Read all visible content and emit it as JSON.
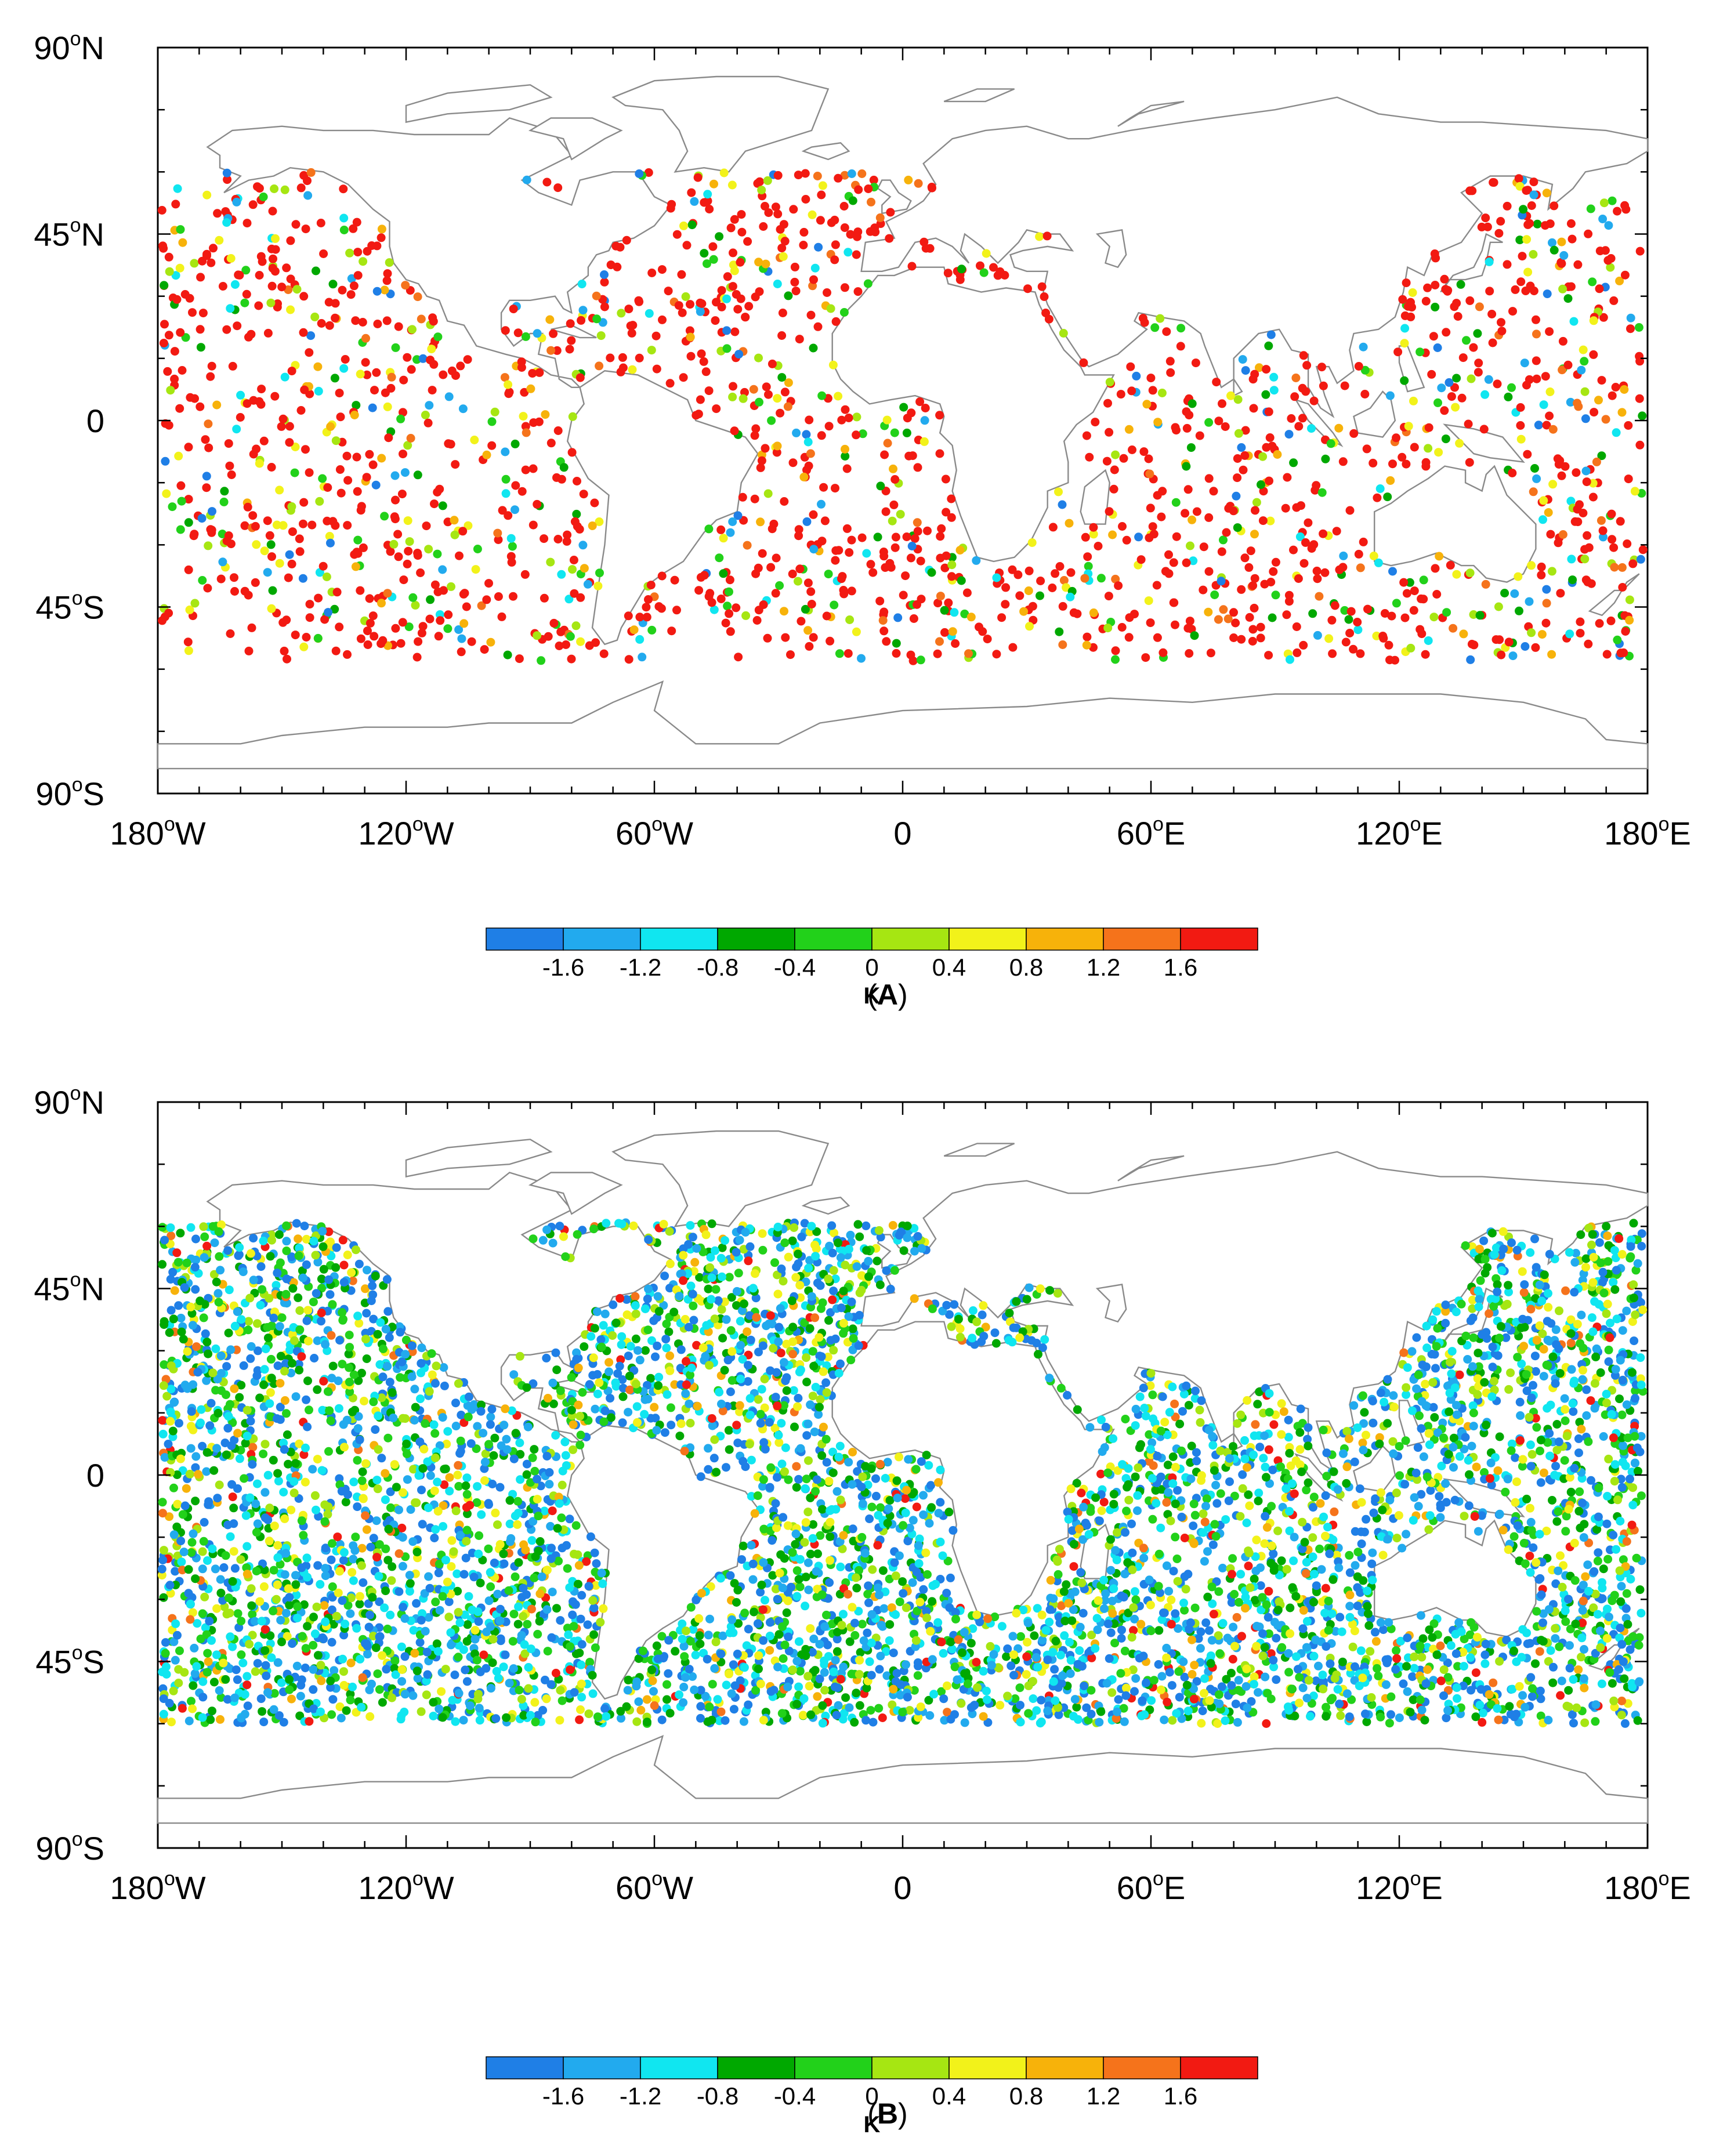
{
  "panels": [
    {
      "id": "A",
      "caption": "A",
      "map": {
        "lat_labels": [
          "90",
          "45",
          "0",
          "45",
          "90"
        ],
        "lat_suffix": [
          "N",
          "N",
          "",
          "S",
          "S"
        ],
        "lon_labels": [
          "180",
          "120",
          "60",
          "0",
          "60",
          "120",
          "180"
        ],
        "lon_suffix": [
          "W",
          "W",
          "W",
          "",
          "E",
          "E",
          "E"
        ],
        "degree_symbol": "o",
        "points_note": "scattered observation points, mostly red (> 1.6 K) in Panel A"
      },
      "colorbar": {
        "unit": "K",
        "tick_labels": [
          "-1.6",
          "-1.2",
          "-0.8",
          "-0.4",
          "0",
          "0.4",
          "0.8",
          "1.2",
          "1.6"
        ]
      }
    },
    {
      "id": "B",
      "caption": "B",
      "map": {
        "lat_labels": [
          "90",
          "45",
          "0",
          "45",
          "90"
        ],
        "lat_suffix": [
          "N",
          "N",
          "",
          "S",
          "S"
        ],
        "lon_labels": [
          "180",
          "120",
          "60",
          "0",
          "60",
          "120",
          "180"
        ],
        "lon_suffix": [
          "W",
          "W",
          "W",
          "",
          "E",
          "E",
          "E"
        ],
        "degree_symbol": "o",
        "points_note": "dense observation points, mostly blue/green/yellow in Panel B"
      },
      "colorbar": {
        "unit": "K",
        "tick_labels": [
          "-1.6",
          "-1.2",
          "-0.8",
          "-0.4",
          "0",
          "0.4",
          "0.8",
          "1.2",
          "1.6"
        ]
      }
    }
  ],
  "palette": [
    "#1f7fe6",
    "#22aaee",
    "#10e6f0",
    "#00a800",
    "#22d11a",
    "#a6e612",
    "#f2f21a",
    "#f7b20a",
    "#f5731b",
    "#f21a12"
  ],
  "mode": {
    "A": [
      0.03,
      0.03,
      0.03,
      0.04,
      0.05,
      0.05,
      0.06,
      0.04,
      0.04,
      0.63
    ],
    "B": [
      0.22,
      0.14,
      0.14,
      0.14,
      0.12,
      0.08,
      0.08,
      0.03,
      0.02,
      0.03
    ]
  }
}
